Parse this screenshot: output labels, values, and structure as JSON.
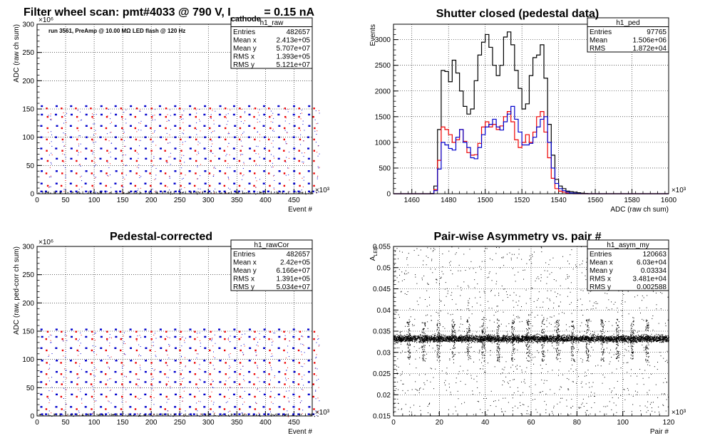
{
  "chart_data": [
    {
      "type": "scatter",
      "panel": "top-left",
      "title_parts": [
        "Filter wheel scan: pmt#4033 @   790 V, I",
        "cathode",
        " = 0.15 nA"
      ],
      "annotation": "run 3561, PreAmp @ 10.00 MΩ LED flash @  120 Hz",
      "xlabel": "Event #",
      "ylabel": "ADC (raw ch sum)",
      "x_multiplier": "×10³",
      "y_multiplier": "×10⁶",
      "xlim": [
        0,
        482
      ],
      "ylim": [
        0,
        300
      ],
      "x_ticks": [
        "0",
        "50",
        "100",
        "150",
        "200",
        "250",
        "300",
        "350",
        "400",
        "450"
      ],
      "y_ticks": [
        "0",
        "50",
        "100",
        "150",
        "200",
        "250",
        "300"
      ],
      "grid": true,
      "stats_box": {
        "name": "h1_raw",
        "rows": [
          [
            "Entries",
            "482657"
          ],
          [
            "Mean x",
            "2.413e+05"
          ],
          [
            "Mean y",
            "5.707e+07"
          ],
          [
            "RMS x",
            "1.393e+05"
          ],
          [
            "RMS y",
            "5.121e+07"
          ]
        ]
      },
      "levels": [
        155,
        140,
        120,
        100,
        80,
        62,
        40,
        18,
        4
      ],
      "step_period": 26,
      "colors": {
        "blue": "#0000cc",
        "red": "#ee0000",
        "black": "#000000"
      }
    },
    {
      "type": "line",
      "panel": "top-right",
      "title": "Shutter closed (pedestal data)",
      "xlabel": "ADC (raw ch sum)",
      "ylabel": "Events",
      "x_multiplier": "×10³",
      "xlim": [
        1450,
        1600
      ],
      "ylim": [
        0,
        3300
      ],
      "x_ticks": [
        "1460",
        "1480",
        "1500",
        "1520",
        "1540",
        "1560",
        "1580",
        "1600"
      ],
      "y_ticks": [
        "0",
        "500",
        "1000",
        "1500",
        "2000",
        "2500",
        "3000"
      ],
      "grid": true,
      "stats_box": {
        "name": "h1_ped",
        "rows": [
          [
            "Entries",
            "97765"
          ],
          [
            "Mean",
            "1.506e+06"
          ],
          [
            "RMS",
            "1.872e+04"
          ]
        ]
      },
      "bin_width": 2,
      "bin_start": 1450,
      "series": [
        {
          "color": "#000000",
          "values": [
            0,
            0,
            0,
            0,
            0,
            0,
            0,
            0,
            0,
            0,
            5,
            150,
            1250,
            2400,
            2380,
            2180,
            2600,
            2350,
            2000,
            1700,
            1550,
            1650,
            2200,
            2700,
            2950,
            3100,
            2850,
            2500,
            2300,
            2500,
            3050,
            3150,
            2900,
            2400,
            2050,
            1650,
            1750,
            2300,
            2650,
            2700,
            2900,
            2250,
            1350,
            750,
            280,
            150,
            100,
            50,
            40,
            30,
            20,
            10,
            5,
            0,
            0,
            0,
            0,
            0,
            0,
            0,
            0,
            0,
            0,
            0,
            0,
            0,
            0,
            0,
            0,
            0,
            0,
            0,
            0,
            0,
            0
          ]
        },
        {
          "color": "#ee0000",
          "values": [
            0,
            0,
            0,
            0,
            0,
            0,
            0,
            0,
            0,
            0,
            0,
            80,
            650,
            1300,
            1250,
            1150,
            1000,
            1050,
            1250,
            1020,
            800,
            750,
            760,
            980,
            1300,
            1400,
            1300,
            1350,
            1250,
            1320,
            1500,
            1600,
            1400,
            1050,
            900,
            1000,
            1150,
            1000,
            1200,
            1500,
            1600,
            1200,
            700,
            300,
            100,
            50,
            30,
            10,
            5,
            0,
            0,
            0,
            0,
            0,
            0,
            0,
            0,
            0,
            0,
            0,
            0,
            0,
            0,
            0,
            0,
            0,
            0,
            0,
            0,
            0,
            0,
            0,
            0,
            0,
            0
          ]
        },
        {
          "color": "#0000cc",
          "values": [
            0,
            0,
            0,
            0,
            0,
            0,
            0,
            0,
            0,
            0,
            0,
            60,
            480,
            1000,
            950,
            880,
            850,
            1100,
            1250,
            1000,
            900,
            700,
            680,
            900,
            1150,
            1300,
            1350,
            1450,
            1300,
            1240,
            1400,
            1550,
            1700,
            1450,
            1200,
            950,
            950,
            980,
            1100,
            1300,
            1450,
            1500,
            1000,
            500,
            200,
            100,
            60,
            30,
            15,
            10,
            5,
            0,
            0,
            0,
            0,
            0,
            0,
            0,
            0,
            0,
            0,
            0,
            0,
            0,
            0,
            0,
            0,
            0,
            0,
            0,
            0,
            0,
            0,
            0,
            0
          ]
        }
      ]
    },
    {
      "type": "scatter",
      "panel": "bottom-left",
      "title": "Pedestal-corrected",
      "xlabel": "Event #",
      "ylabel": "ADC (raw, ped-corr ch sum)",
      "x_multiplier": "×10³",
      "y_multiplier": "×10⁶",
      "xlim": [
        0,
        482
      ],
      "ylim": [
        0,
        300
      ],
      "x_ticks": [
        "0",
        "50",
        "100",
        "150",
        "200",
        "250",
        "300",
        "350",
        "400",
        "450"
      ],
      "y_ticks": [
        "0",
        "50",
        "100",
        "150",
        "200",
        "250",
        "300"
      ],
      "grid": true,
      "stats_box": {
        "name": "h1_rawCor",
        "rows": [
          [
            "Entries",
            "482657"
          ],
          [
            "Mean x",
            "2.42e+05"
          ],
          [
            "Mean y",
            "6.166e+07"
          ],
          [
            "RMS x",
            "1.391e+05"
          ],
          [
            "RMS y",
            "5.034e+07"
          ]
        ]
      },
      "levels": [
        153,
        140,
        120,
        98,
        78,
        60,
        38,
        16,
        3
      ],
      "step_period": 26,
      "colors": {
        "blue": "#0000cc",
        "red": "#ee0000",
        "black": "#000000"
      }
    },
    {
      "type": "scatter",
      "panel": "bottom-right",
      "title": "Pair-wise Asymmetry vs. pair #",
      "xlabel": "Pair #",
      "ylabel": "A_LED",
      "x_multiplier": "×10³",
      "xlim": [
        0,
        120
      ],
      "ylim": [
        0.015,
        0.055
      ],
      "x_ticks": [
        "0",
        "20",
        "40",
        "60",
        "80",
        "100",
        "120"
      ],
      "y_ticks": [
        "0.015",
        "0.02",
        "0.025",
        "0.03",
        "0.035",
        "0.04",
        "0.045",
        "0.05",
        "0.055"
      ],
      "grid": true,
      "stats_box": {
        "name": "h1_asym_my",
        "rows": [
          [
            "Entries",
            "120663"
          ],
          [
            "Mean x",
            "6.03e+04"
          ],
          [
            "Mean y",
            "0.03334"
          ],
          [
            "RMS x",
            "3.481e+04"
          ],
          [
            "RMS y",
            "0.002588"
          ]
        ]
      },
      "band_center": 0.0333,
      "band_halfwidth": 0.0012,
      "spike_x": [
        6.5,
        13,
        19.5,
        26,
        32.5,
        39,
        45.5,
        52,
        58.5,
        65,
        71.5,
        78,
        84.5,
        91,
        97.5,
        104,
        110.5
      ],
      "spike_range": [
        0.028,
        0.038
      ]
    }
  ]
}
